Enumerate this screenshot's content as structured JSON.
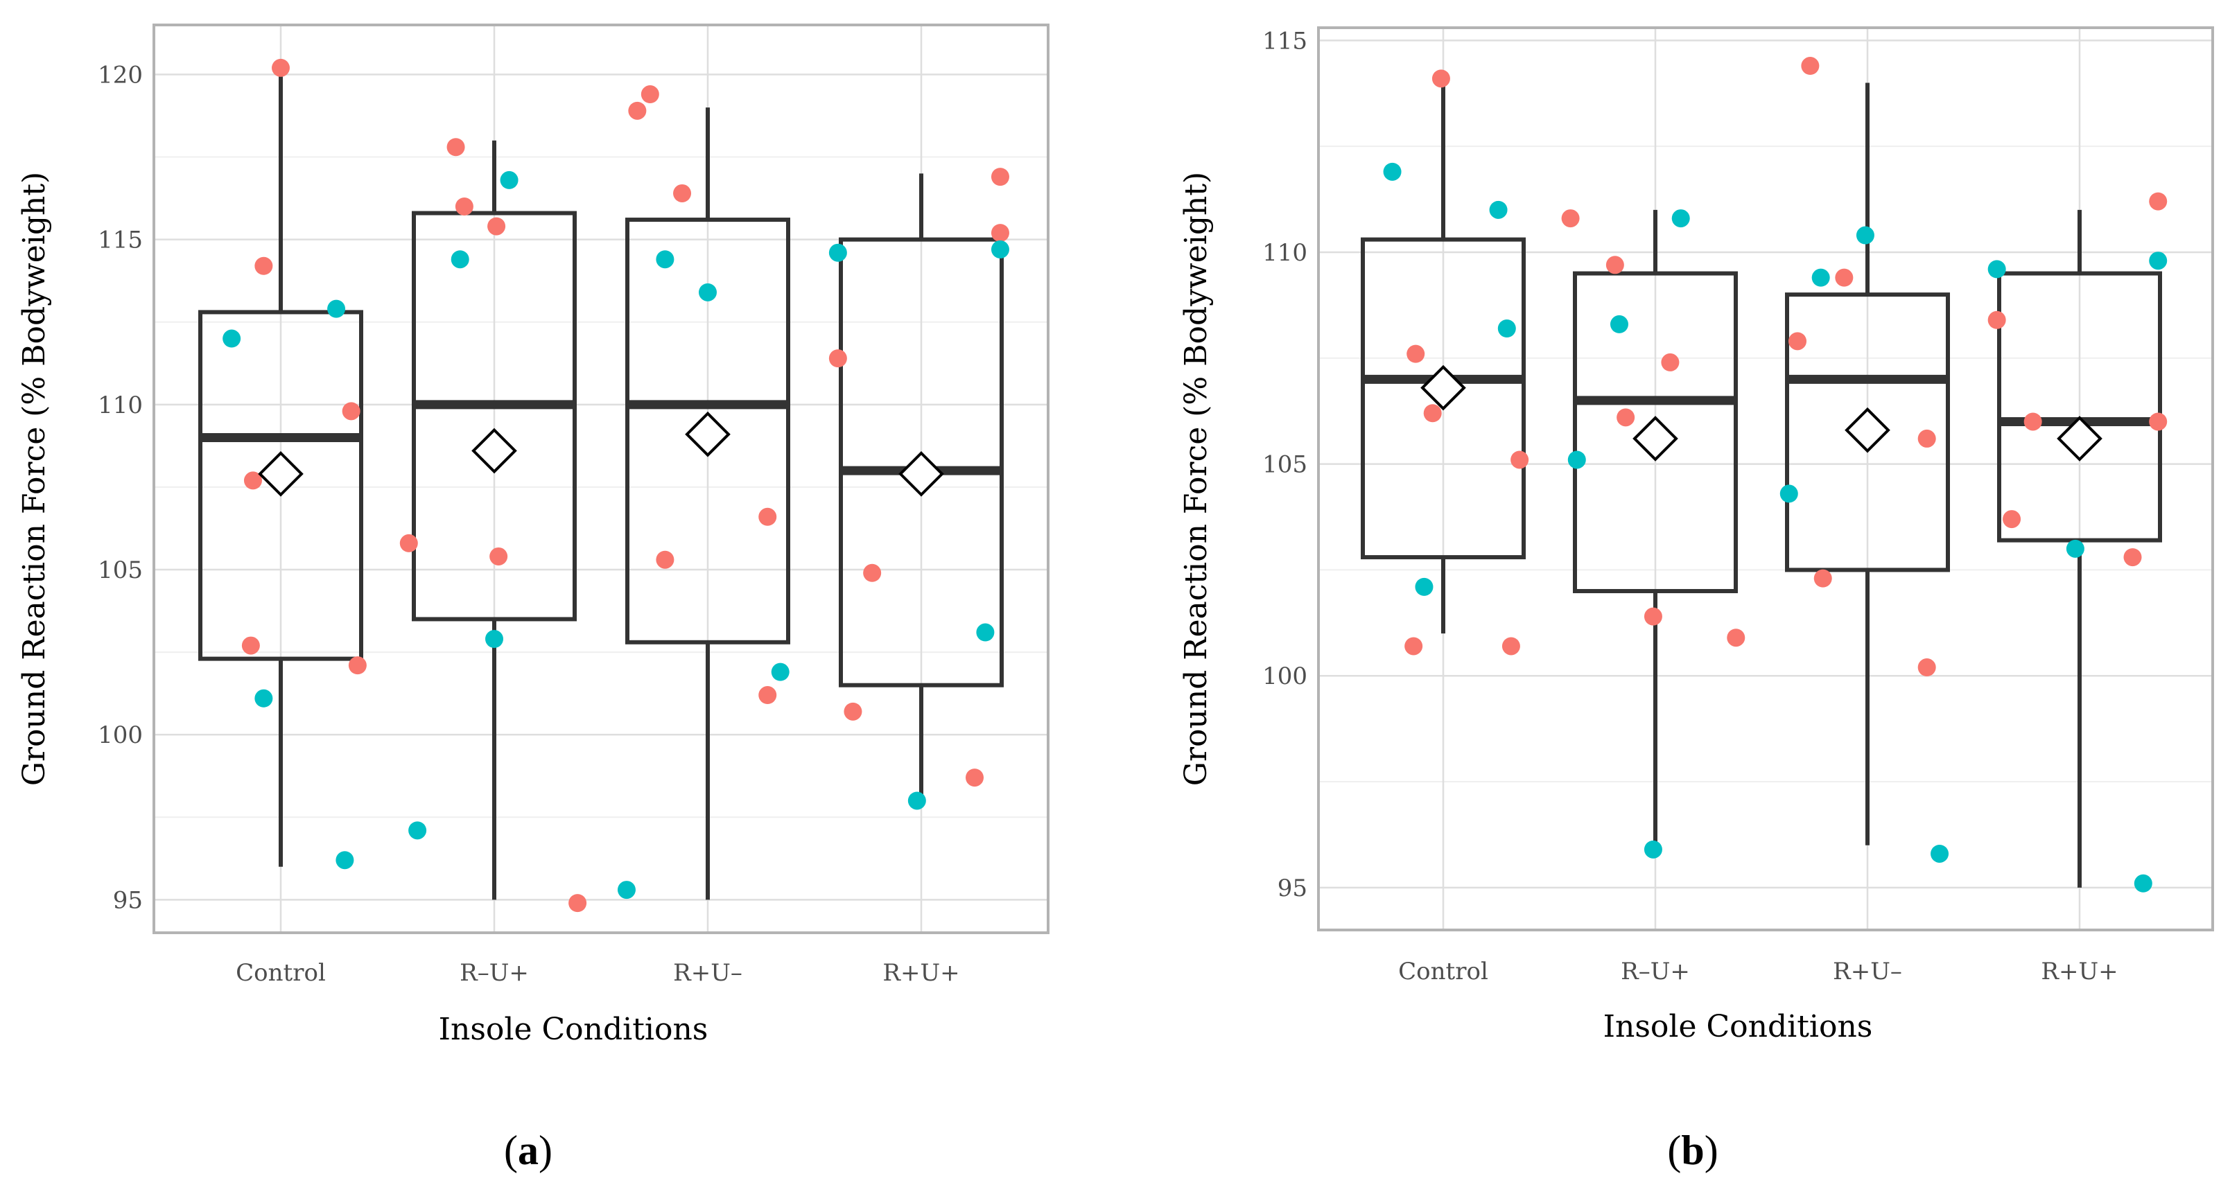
{
  "colors": {
    "red": "#F8766D",
    "teal": "#00BFC4",
    "box": "#333333",
    "grid_major": "#dedede",
    "grid_minor": "#efefef",
    "frame": "#b3b3b3"
  },
  "chart_data": [
    {
      "type": "box",
      "panel_label": "a",
      "xlabel": "Insole Conditions",
      "ylabel": "Ground Reaction Force (% Bodyweight)",
      "categories": [
        "Control",
        "R–U+",
        "R+U–",
        "R+U+"
      ],
      "ylim": [
        94,
        121.5
      ],
      "yticks": [
        95,
        100,
        105,
        110,
        115,
        120
      ],
      "boxes": [
        {
          "category": "Control",
          "whisker_low": 96,
          "q1": 102.3,
          "median": 109,
          "q3": 112.8,
          "whisker_high": 120.1,
          "mean": 107.9
        },
        {
          "category": "R–U+",
          "whisker_low": 95,
          "q1": 103.5,
          "median": 110,
          "q3": 115.8,
          "whisker_high": 118,
          "mean": 108.6
        },
        {
          "category": "R+U–",
          "whisker_low": 95,
          "q1": 102.8,
          "median": 110,
          "q3": 115.6,
          "whisker_high": 119,
          "mean": 109.1
        },
        {
          "category": "R+U+",
          "whisker_low": 98,
          "q1": 101.5,
          "median": 108,
          "q3": 115,
          "whisker_high": 117,
          "mean": 107.9
        }
      ],
      "points": [
        {
          "c": 0,
          "dx": -0.23,
          "y": 112,
          "g": "teal"
        },
        {
          "c": 0,
          "dx": -0.08,
          "y": 114.2,
          "g": "red"
        },
        {
          "c": 0,
          "dx": -0.13,
          "y": 107.7,
          "g": "red"
        },
        {
          "c": 0,
          "dx": -0.14,
          "y": 102.7,
          "g": "red"
        },
        {
          "c": 0,
          "dx": -0.08,
          "y": 101.1,
          "g": "teal"
        },
        {
          "c": 0,
          "dx": 0.0,
          "y": 120.2,
          "g": "red"
        },
        {
          "c": 0,
          "dx": 0.26,
          "y": 112.9,
          "g": "teal"
        },
        {
          "c": 0,
          "dx": 0.33,
          "y": 109.8,
          "g": "red"
        },
        {
          "c": 0,
          "dx": 0.36,
          "y": 102.1,
          "g": "red"
        },
        {
          "c": 0,
          "dx": 0.3,
          "y": 96.2,
          "g": "teal"
        },
        {
          "c": 1,
          "dx": -0.18,
          "y": 117.8,
          "g": "red"
        },
        {
          "c": 1,
          "dx": -0.14,
          "y": 116,
          "g": "red"
        },
        {
          "c": 1,
          "dx": -0.16,
          "y": 114.4,
          "g": "teal"
        },
        {
          "c": 1,
          "dx": -0.4,
          "y": 105.8,
          "g": "red"
        },
        {
          "c": 1,
          "dx": -0.36,
          "y": 97.1,
          "g": "teal"
        },
        {
          "c": 1,
          "dx": 0.07,
          "y": 116.8,
          "g": "teal"
        },
        {
          "c": 1,
          "dx": 0.01,
          "y": 115.4,
          "g": "red"
        },
        {
          "c": 1,
          "dx": 0.02,
          "y": 105.4,
          "g": "red"
        },
        {
          "c": 1,
          "dx": 0.0,
          "y": 102.9,
          "g": "teal"
        },
        {
          "c": 1,
          "dx": 0.39,
          "y": 94.9,
          "g": "red"
        },
        {
          "c": 2,
          "dx": -0.33,
          "y": 118.9,
          "g": "red"
        },
        {
          "c": 2,
          "dx": -0.27,
          "y": 119.4,
          "g": "red"
        },
        {
          "c": 2,
          "dx": -0.2,
          "y": 114.4,
          "g": "teal"
        },
        {
          "c": 2,
          "dx": -0.12,
          "y": 116.4,
          "g": "red"
        },
        {
          "c": 2,
          "dx": 0.0,
          "y": 113.4,
          "g": "teal"
        },
        {
          "c": 2,
          "dx": -0.2,
          "y": 105.3,
          "g": "red"
        },
        {
          "c": 2,
          "dx": 0.28,
          "y": 106.6,
          "g": "red"
        },
        {
          "c": 2,
          "dx": 0.28,
          "y": 101.2,
          "g": "red"
        },
        {
          "c": 2,
          "dx": 0.34,
          "y": 101.9,
          "g": "teal"
        },
        {
          "c": 2,
          "dx": -0.38,
          "y": 95.3,
          "g": "teal"
        },
        {
          "c": 3,
          "dx": -0.39,
          "y": 114.6,
          "g": "teal"
        },
        {
          "c": 3,
          "dx": -0.39,
          "y": 111.4,
          "g": "red"
        },
        {
          "c": 3,
          "dx": -0.23,
          "y": 104.9,
          "g": "red"
        },
        {
          "c": 3,
          "dx": -0.32,
          "y": 100.7,
          "g": "red"
        },
        {
          "c": 3,
          "dx": -0.02,
          "y": 98,
          "g": "teal"
        },
        {
          "c": 3,
          "dx": 0.37,
          "y": 116.9,
          "g": "red"
        },
        {
          "c": 3,
          "dx": 0.37,
          "y": 115.2,
          "g": "red"
        },
        {
          "c": 3,
          "dx": 0.37,
          "y": 114.7,
          "g": "teal"
        },
        {
          "c": 3,
          "dx": 0.3,
          "y": 103.1,
          "g": "teal"
        },
        {
          "c": 3,
          "dx": 0.25,
          "y": 98.7,
          "g": "red"
        }
      ]
    },
    {
      "type": "box",
      "panel_label": "b",
      "xlabel": "Insole Conditions",
      "ylabel": "Ground Reaction Force (% Bodyweight)",
      "categories": [
        "Control",
        "R–U+",
        "R+U–",
        "R+U+"
      ],
      "ylim": [
        94,
        115.3
      ],
      "yticks": [
        95,
        100,
        105,
        110,
        115
      ],
      "boxes": [
        {
          "category": "Control",
          "whisker_low": 101,
          "q1": 102.8,
          "median": 107,
          "q3": 110.3,
          "whisker_high": 114.2,
          "mean": 106.8
        },
        {
          "category": "R–U+",
          "whisker_low": 96,
          "q1": 102,
          "median": 106.5,
          "q3": 109.5,
          "whisker_high": 111,
          "mean": 105.6
        },
        {
          "category": "R+U–",
          "whisker_low": 96,
          "q1": 102.5,
          "median": 107,
          "q3": 109,
          "whisker_high": 114,
          "mean": 105.8
        },
        {
          "category": "R+U+",
          "whisker_low": 95,
          "q1": 103.2,
          "median": 106,
          "q3": 109.5,
          "whisker_high": 111,
          "mean": 105.6
        }
      ],
      "points": [
        {
          "c": 0,
          "dx": -0.24,
          "y": 111.9,
          "g": "teal"
        },
        {
          "c": 0,
          "dx": -0.13,
          "y": 107.6,
          "g": "red"
        },
        {
          "c": 0,
          "dx": -0.05,
          "y": 106.2,
          "g": "red"
        },
        {
          "c": 0,
          "dx": -0.09,
          "y": 102.1,
          "g": "teal"
        },
        {
          "c": 0,
          "dx": -0.14,
          "y": 100.7,
          "g": "red"
        },
        {
          "c": 0,
          "dx": -0.01,
          "y": 114.1,
          "g": "red"
        },
        {
          "c": 0,
          "dx": 0.26,
          "y": 111,
          "g": "teal"
        },
        {
          "c": 0,
          "dx": 0.3,
          "y": 108.2,
          "g": "teal"
        },
        {
          "c": 0,
          "dx": 0.36,
          "y": 105.1,
          "g": "red"
        },
        {
          "c": 0,
          "dx": 0.32,
          "y": 100.7,
          "g": "red"
        },
        {
          "c": 1,
          "dx": -0.4,
          "y": 110.8,
          "g": "red"
        },
        {
          "c": 1,
          "dx": -0.19,
          "y": 109.7,
          "g": "red"
        },
        {
          "c": 1,
          "dx": -0.17,
          "y": 108.3,
          "g": "teal"
        },
        {
          "c": 1,
          "dx": -0.14,
          "y": 106.1,
          "g": "red"
        },
        {
          "c": 1,
          "dx": -0.37,
          "y": 105.1,
          "g": "teal"
        },
        {
          "c": 1,
          "dx": 0.12,
          "y": 110.8,
          "g": "teal"
        },
        {
          "c": 1,
          "dx": 0.07,
          "y": 107.4,
          "g": "red"
        },
        {
          "c": 1,
          "dx": -0.01,
          "y": 101.4,
          "g": "red"
        },
        {
          "c": 1,
          "dx": 0.38,
          "y": 100.9,
          "g": "red"
        },
        {
          "c": 1,
          "dx": -0.01,
          "y": 95.9,
          "g": "teal"
        },
        {
          "c": 2,
          "dx": -0.27,
          "y": 114.4,
          "g": "red"
        },
        {
          "c": 2,
          "dx": -0.22,
          "y": 109.4,
          "g": "teal"
        },
        {
          "c": 2,
          "dx": -0.11,
          "y": 109.4,
          "g": "red"
        },
        {
          "c": 2,
          "dx": -0.33,
          "y": 107.9,
          "g": "red"
        },
        {
          "c": 2,
          "dx": -0.37,
          "y": 104.3,
          "g": "teal"
        },
        {
          "c": 2,
          "dx": -0.21,
          "y": 102.3,
          "g": "red"
        },
        {
          "c": 2,
          "dx": -0.01,
          "y": 110.4,
          "g": "teal"
        },
        {
          "c": 2,
          "dx": 0.28,
          "y": 105.6,
          "g": "red"
        },
        {
          "c": 2,
          "dx": 0.28,
          "y": 100.2,
          "g": "red"
        },
        {
          "c": 2,
          "dx": 0.34,
          "y": 95.8,
          "g": "teal"
        },
        {
          "c": 3,
          "dx": -0.39,
          "y": 109.6,
          "g": "teal"
        },
        {
          "c": 3,
          "dx": -0.39,
          "y": 108.4,
          "g": "red"
        },
        {
          "c": 3,
          "dx": -0.22,
          "y": 106,
          "g": "red"
        },
        {
          "c": 3,
          "dx": -0.32,
          "y": 103.7,
          "g": "red"
        },
        {
          "c": 3,
          "dx": -0.02,
          "y": 103,
          "g": "teal"
        },
        {
          "c": 3,
          "dx": 0.37,
          "y": 111.2,
          "g": "red"
        },
        {
          "c": 3,
          "dx": 0.37,
          "y": 109.8,
          "g": "teal"
        },
        {
          "c": 3,
          "dx": 0.37,
          "y": 106,
          "g": "red"
        },
        {
          "c": 3,
          "dx": 0.25,
          "y": 102.8,
          "g": "red"
        },
        {
          "c": 3,
          "dx": 0.3,
          "y": 95.1,
          "g": "teal"
        }
      ]
    }
  ]
}
